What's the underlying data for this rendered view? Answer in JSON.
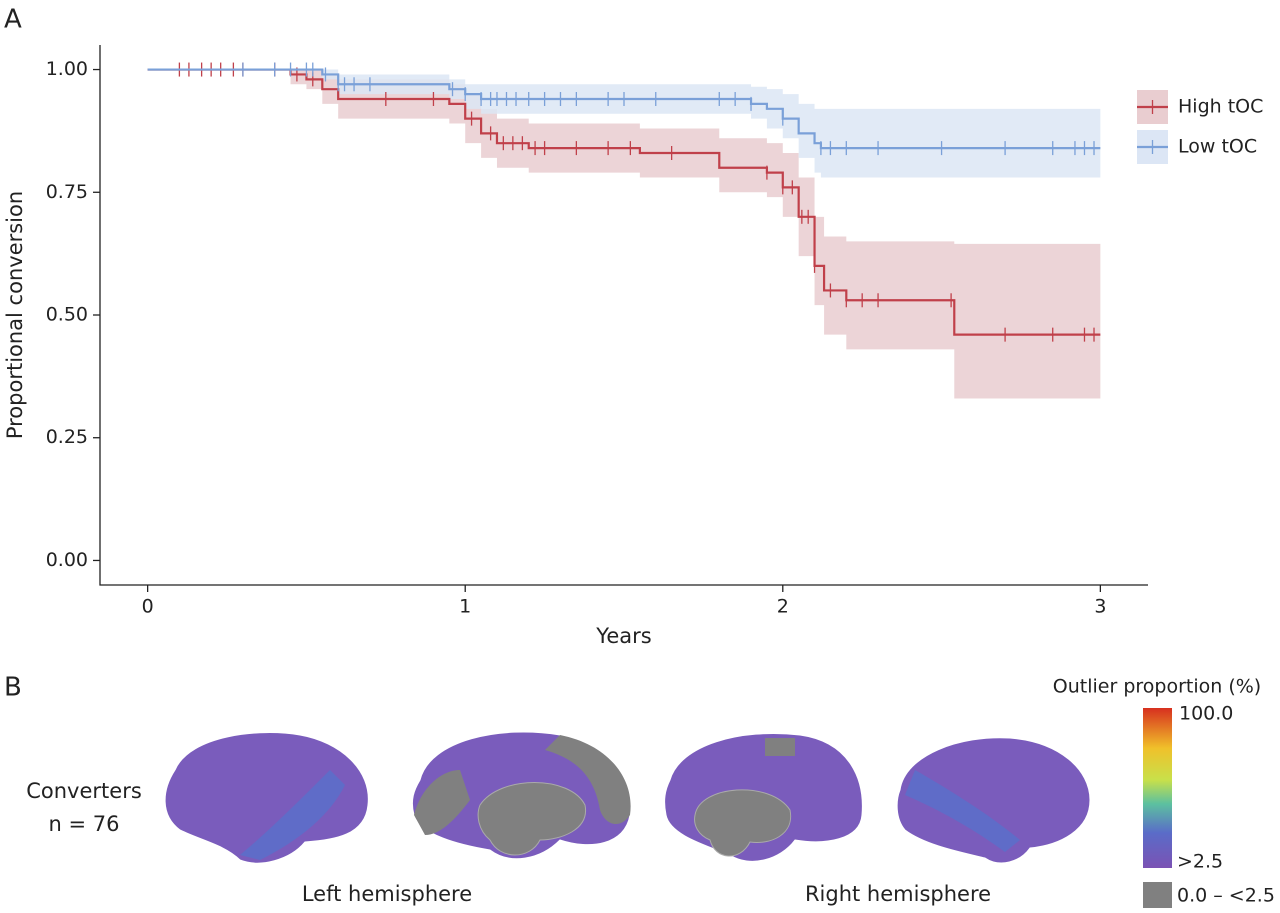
{
  "panel_a_label": "A",
  "chart_data": {
    "type": "step",
    "ylabel": "Proportional conversion",
    "xlabel": "Years",
    "xlim": [
      -0.15,
      3.15
    ],
    "xticks": [
      0,
      1,
      2,
      3
    ],
    "ylim": [
      -0.05,
      1.05
    ],
    "yticks": [
      {
        "value": 0,
        "label": "0.00"
      },
      {
        "value": 0.25,
        "label": "0.25"
      },
      {
        "value": 0.5,
        "label": "0.50"
      },
      {
        "value": 0.75,
        "label": "0.75"
      },
      {
        "value": 1,
        "label": "1.00"
      }
    ],
    "legend": "right",
    "series": [
      {
        "name": "High tOC",
        "color": "#c0404a",
        "band_color": "#e9cdd0",
        "x": [
          0,
          0.45,
          0.5,
          0.55,
          0.6,
          0.95,
          1.0,
          1.05,
          1.1,
          1.2,
          1.55,
          1.8,
          1.95,
          2.0,
          2.05,
          2.1,
          2.13,
          2.2,
          2.54,
          3.0
        ],
        "values": [
          1,
          0.99,
          0.98,
          0.96,
          0.94,
          0.93,
          0.9,
          0.87,
          0.85,
          0.84,
          0.83,
          0.8,
          0.79,
          0.76,
          0.7,
          0.6,
          0.55,
          0.53,
          0.46,
          0.46
        ],
        "upper": [
          1,
          1,
          1,
          0.99,
          0.98,
          0.97,
          0.95,
          0.92,
          0.9,
          0.89,
          0.88,
          0.86,
          0.85,
          0.83,
          0.78,
          0.7,
          0.66,
          0.65,
          0.645,
          0.645
        ],
        "lower": [
          1,
          0.97,
          0.96,
          0.93,
          0.9,
          0.89,
          0.85,
          0.82,
          0.8,
          0.79,
          0.78,
          0.75,
          0.74,
          0.7,
          0.62,
          0.52,
          0.46,
          0.43,
          0.33,
          0.33
        ],
        "censored": [
          0.1,
          0.13,
          0.17,
          0.2,
          0.23,
          0.27,
          0.3,
          0.4,
          0.47,
          0.52,
          0.75,
          0.9,
          1.02,
          1.08,
          1.12,
          1.15,
          1.18,
          1.22,
          1.25,
          1.35,
          1.45,
          1.52,
          1.65,
          1.95,
          2.0,
          2.03,
          2.06,
          2.08,
          2.1,
          2.15,
          2.2,
          2.25,
          2.3,
          2.53,
          2.7,
          2.85,
          2.95,
          2.98
        ]
      },
      {
        "name": "Low tOC",
        "color": "#7aa0d8",
        "band_color": "#dce6f5",
        "x": [
          0,
          0.55,
          0.6,
          0.95,
          1.0,
          1.05,
          1.9,
          1.95,
          2.0,
          2.05,
          2.1,
          2.12,
          3.0
        ],
        "values": [
          1,
          0.99,
          0.97,
          0.96,
          0.95,
          0.94,
          0.93,
          0.92,
          0.9,
          0.87,
          0.85,
          0.84,
          0.84
        ],
        "upper": [
          1,
          1,
          0.99,
          0.98,
          0.97,
          0.97,
          0.965,
          0.96,
          0.95,
          0.93,
          0.92,
          0.92,
          0.92
        ],
        "lower": [
          1,
          0.98,
          0.95,
          0.94,
          0.92,
          0.91,
          0.9,
          0.88,
          0.86,
          0.82,
          0.79,
          0.78,
          0.78
        ],
        "censored": [
          0.3,
          0.4,
          0.45,
          0.5,
          0.52,
          0.56,
          0.6,
          0.62,
          0.65,
          0.7,
          0.96,
          1.0,
          1.05,
          1.08,
          1.1,
          1.13,
          1.16,
          1.2,
          1.25,
          1.3,
          1.35,
          1.45,
          1.5,
          1.6,
          1.8,
          1.85,
          1.9,
          2.0,
          2.12,
          2.15,
          2.2,
          2.3,
          2.5,
          2.7,
          2.85,
          2.92,
          2.95,
          2.98
        ]
      }
    ]
  },
  "panel_b": {
    "label": "B",
    "group": "Converters",
    "n": "n = 76",
    "left": "Left hemisphere",
    "right": "Right hemisphere",
    "colorbar": {
      "title": "Outlier proportion (%)",
      "top": "100.0",
      "bottom": ">2.5",
      "gray": "0.0 – <2.5"
    }
  }
}
